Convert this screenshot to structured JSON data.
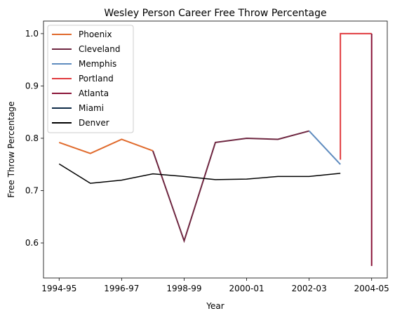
{
  "chart_data": {
    "type": "line",
    "title": "Wesley Person Career Free Throw Percentage",
    "xlabel": "Year",
    "ylabel": "Free Throw Percentage",
    "x_tick_labels": [
      "1994-95",
      "1996-97",
      "1998-99",
      "2000-01",
      "2002-03",
      "2004-05"
    ],
    "x_tick_values": [
      0,
      2,
      4,
      6,
      8,
      10
    ],
    "y_ticks": [
      0.6,
      0.7,
      0.8,
      0.9,
      1.0
    ],
    "xlim": [
      -0.5,
      10.5
    ],
    "ylim": [
      0.533,
      1.024
    ],
    "grid": false,
    "legend_position": "top-left",
    "series": [
      {
        "name": "Phoenix",
        "color": "#e06a2c",
        "points": [
          [
            0,
            0.792
          ],
          [
            1,
            0.771
          ],
          [
            2,
            0.798
          ],
          [
            3,
            0.776
          ]
        ]
      },
      {
        "name": "Cleveland",
        "color": "#6e2640",
        "points": [
          [
            3,
            0.776
          ],
          [
            4,
            0.604
          ],
          [
            5,
            0.792
          ],
          [
            6,
            0.8
          ],
          [
            7,
            0.798
          ],
          [
            8,
            0.814
          ]
        ]
      },
      {
        "name": "Memphis",
        "color": "#5f8cbf",
        "points": [
          [
            8,
            0.814
          ],
          [
            9,
            0.75
          ]
        ]
      },
      {
        "name": "Portland",
        "color": "#e03a3e",
        "points": [
          [
            9,
            0.759
          ],
          [
            9,
            1.0
          ],
          [
            10,
            1.0
          ]
        ]
      },
      {
        "name": "Atlanta",
        "color": "#8a1538",
        "points": [
          [
            10,
            1.0
          ],
          [
            10,
            0.556
          ]
        ]
      },
      {
        "name": "Miami",
        "color": "#0e2a47",
        "points": []
      },
      {
        "name": "Denver",
        "color": "#000000",
        "points": [
          [
            0,
            0.751
          ],
          [
            1,
            0.714
          ],
          [
            2,
            0.72
          ],
          [
            3,
            0.732
          ],
          [
            4,
            0.727
          ],
          [
            5,
            0.721
          ],
          [
            6,
            0.722
          ],
          [
            7,
            0.727
          ],
          [
            8,
            0.727
          ],
          [
            9,
            0.733
          ]
        ]
      }
    ]
  }
}
